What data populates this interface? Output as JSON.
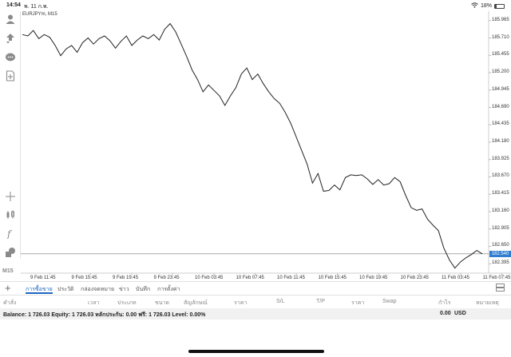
{
  "status_bar": {
    "time": "14:54",
    "date": "พ. 11 ก.พ.",
    "battery": "18%",
    "battery_level": 0.18
  },
  "left_toolbar": {
    "icons": [
      "account-icon",
      "trade-icon",
      "chat-icon",
      "new-order-icon",
      "crosshair-icon",
      "candles-icon",
      "function-icon",
      "objects-icon"
    ],
    "timeframe": "M15"
  },
  "chart": {
    "symbol": "EURJPYm, M15",
    "price_axis": [
      "185.965",
      "185.710",
      "185.455",
      "185.200",
      "184.945",
      "184.690",
      "184.435",
      "184.180",
      "183.925",
      "183.670",
      "183.415",
      "183.160",
      "182.905",
      "182.650",
      "182.395"
    ],
    "current_price": "182.540",
    "time_axis": [
      "9 Feb 11:45",
      "9 Feb 15:45",
      "9 Feb 19:45",
      "9 Feb 23:45",
      "10 Feb 03:45",
      "10 Feb 07:45",
      "10 Feb 11:45",
      "10 Feb 15:45",
      "10 Feb 19:45",
      "10 Feb 23:45",
      "11 Feb 03:45",
      "11 Feb 07:45"
    ],
    "line_color": "#222222",
    "price_tag_color": "#2e7dd1"
  },
  "chart_data": {
    "type": "line",
    "title": "EURJPYm, M15",
    "xlabel": "",
    "ylabel": "",
    "ylim": [
      182.28,
      186.08
    ],
    "x_ticks": [
      "9 Feb 11:45",
      "9 Feb 15:45",
      "9 Feb 19:45",
      "9 Feb 23:45",
      "10 Feb 03:45",
      "10 Feb 07:45",
      "10 Feb 11:45",
      "10 Feb 15:45",
      "10 Feb 19:45",
      "10 Feb 23:45",
      "11 Feb 03:45",
      "11 Feb 07:45"
    ],
    "current_price": 182.54,
    "grid": false,
    "series": [
      {
        "values": [
          185.76,
          185.74,
          185.82,
          185.7,
          185.76,
          185.72,
          185.6,
          185.45,
          185.55,
          185.6,
          185.5,
          185.64,
          185.71,
          185.62,
          185.7,
          185.74,
          185.67,
          185.56,
          185.66,
          185.74,
          185.6,
          185.68,
          185.74,
          185.7,
          185.76,
          185.68,
          185.84,
          185.92,
          185.8,
          185.62,
          185.44,
          185.24,
          185.1,
          184.92,
          185.02,
          184.94,
          184.86,
          184.72,
          184.86,
          184.98,
          185.18,
          185.27,
          185.1,
          185.18,
          185.04,
          184.92,
          184.82,
          184.75,
          184.62,
          184.46,
          184.26,
          184.06,
          183.86,
          183.58,
          183.72,
          183.46,
          183.47,
          183.55,
          183.48,
          183.66,
          183.7,
          183.69,
          183.7,
          183.64,
          183.56,
          183.63,
          183.55,
          183.57,
          183.66,
          183.6,
          183.4,
          183.22,
          183.18,
          183.2,
          183.05,
          182.96,
          182.88,
          182.62,
          182.45,
          182.33,
          182.42,
          182.48,
          182.53,
          182.59,
          182.54
        ]
      }
    ]
  },
  "tabs": {
    "items": [
      "การซื้อขาย",
      "ประวัติ",
      "กล่องจดหมาย",
      "ข่าว",
      "บันทึก",
      "การตั้งค่า"
    ],
    "active_index": 0
  },
  "table": {
    "columns": [
      "คำสั่ง",
      "เวลา",
      "ประเภท",
      "ขนาด",
      "สัญลักษณ์",
      "ราคา",
      "S/L",
      "T/P",
      "ราคา",
      "Swap",
      "กำไร",
      "หมายเหตุ"
    ]
  },
  "balance": {
    "text": "Balance: 1 726.03  Equity: 1 726.03  หลักประกัน: 0.00  ฟรี: 1 726.03  Level: 0.00%",
    "profit": "0.00",
    "currency": "USD"
  }
}
